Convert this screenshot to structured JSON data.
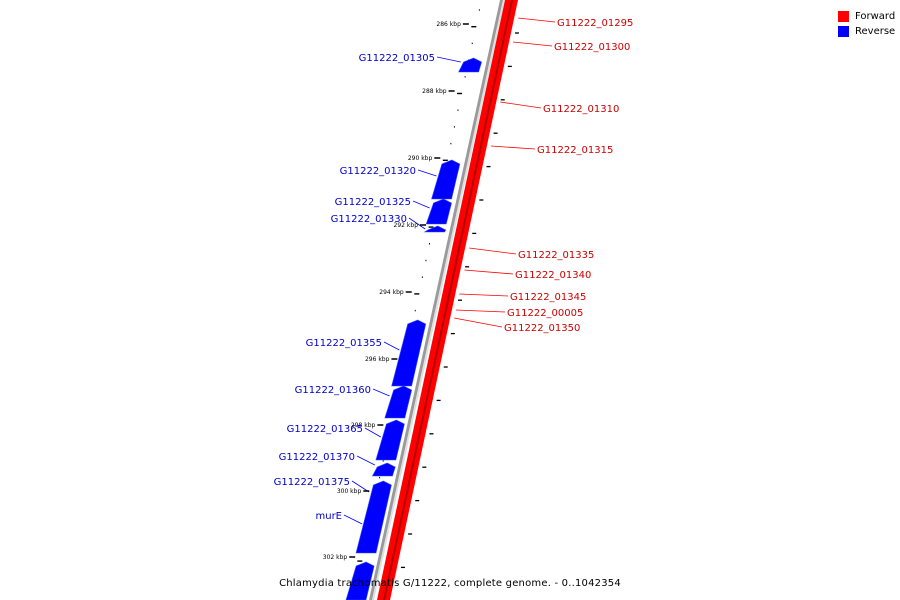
{
  "legend": {
    "forward_label": "Forward",
    "reverse_label": "Reverse"
  },
  "colors": {
    "forward": "#ff0000",
    "reverse": "#0000ff",
    "forward_text": "#cc0000",
    "reverse_text": "#0000cc",
    "axis": "#888888"
  },
  "caption": "Chlamydia trachomatis G/11222, complete genome. - 0..1042354",
  "ruler_labels": [
    "286 kbp",
    "288 kbp",
    "290 kbp",
    "292 kbp",
    "294 kbp",
    "296 kbp",
    "298 kbp",
    "300 kbp",
    "302 kbp"
  ],
  "forward_genes": [
    "G11222_01295",
    "G11222_01300",
    "G11222_01310",
    "G11222_01315",
    "G11222_01335",
    "G11222_01340",
    "G11222_01345",
    "G11222_00005",
    "G11222_01350"
  ],
  "reverse_genes": [
    "G11222_01305",
    "G11222_01320",
    "G11222_01325",
    "G11222_01330",
    "G11222_01355",
    "G11222_01360",
    "G11222_01365",
    "G11222_01370",
    "G11222_01375",
    "murE"
  ]
}
